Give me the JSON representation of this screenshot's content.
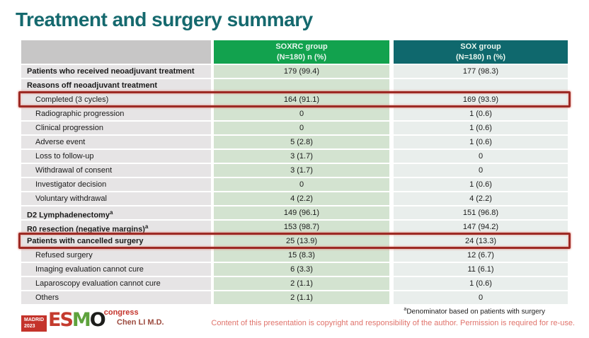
{
  "slide": {
    "title": "Treatment and surgery summary"
  },
  "table": {
    "columns": [
      {
        "name": "SOXRC group",
        "sub": "(N=180)  n (%)"
      },
      {
        "name": "SOX group",
        "sub": "(N=180)  n (%)"
      }
    ],
    "rows": [
      {
        "label": "Patients who received neoadjuvant treatment",
        "sup": "",
        "bold": true,
        "highlight": false,
        "soxrc": "179 (99.4)",
        "sox": "177 (98.3)"
      },
      {
        "label": "Reasons off neoadjuvant treatment",
        "sup": "",
        "bold": true,
        "highlight": false,
        "soxrc": "",
        "sox": ""
      },
      {
        "label": "Completed (3 cycles)",
        "sup": "",
        "bold": false,
        "highlight": true,
        "soxrc": "164 (91.1)",
        "sox": "169 (93.9)"
      },
      {
        "label": "Radiographic progression",
        "sup": "",
        "bold": false,
        "highlight": false,
        "soxrc": "0",
        "sox": "1 (0.6)"
      },
      {
        "label": "Clinical progression",
        "sup": "",
        "bold": false,
        "highlight": false,
        "soxrc": "0",
        "sox": "1 (0.6)"
      },
      {
        "label": "Adverse event",
        "sup": "",
        "bold": false,
        "highlight": false,
        "soxrc": "5 (2.8)",
        "sox": "1 (0.6)"
      },
      {
        "label": "Loss to follow-up",
        "sup": "",
        "bold": false,
        "highlight": false,
        "soxrc": "3 (1.7)",
        "sox": "0"
      },
      {
        "label": "Withdrawal of consent",
        "sup": "",
        "bold": false,
        "highlight": false,
        "soxrc": "3 (1.7)",
        "sox": "0"
      },
      {
        "label": "Investigator decision",
        "sup": "",
        "bold": false,
        "highlight": false,
        "soxrc": "0",
        "sox": "1 (0.6)"
      },
      {
        "label": "Voluntary withdrawal",
        "sup": "",
        "bold": false,
        "highlight": false,
        "soxrc": "4 (2.2)",
        "sox": "4 (2.2)"
      },
      {
        "label": "D2 Lymphadenectomy",
        "sup": "a",
        "bold": true,
        "highlight": false,
        "soxrc": "149 (96.1)",
        "sox": "151 (96.8)"
      },
      {
        "label": "R0 resection (negative margins)",
        "sup": "a",
        "bold": true,
        "highlight": false,
        "soxrc": "153 (98.7)",
        "sox": "147 (94.2)"
      },
      {
        "label": "Patients with cancelled surgery",
        "sup": "",
        "bold": true,
        "highlight": true,
        "soxrc": "25 (13.9)",
        "sox": "24 (13.3)"
      },
      {
        "label": "Refused surgery",
        "sup": "",
        "bold": false,
        "highlight": false,
        "soxrc": "15 (8.3)",
        "sox": "12 (6.7)"
      },
      {
        "label": "Imaging evaluation cannot cure",
        "sup": "",
        "bold": false,
        "highlight": false,
        "soxrc": "6 (3.3)",
        "sox": "11 (6.1)"
      },
      {
        "label": "Laparoscopy evaluation cannot cure",
        "sup": "",
        "bold": false,
        "highlight": false,
        "soxrc": "2 (1.1)",
        "sox": "1 (0.6)"
      },
      {
        "label": "Others",
        "sup": "",
        "bold": false,
        "highlight": false,
        "soxrc": "2 (1.1)",
        "sox": "0"
      }
    ]
  },
  "footer": {
    "logo": {
      "venue_line1": "MADRID",
      "venue_line2": "2023",
      "brand_letters": [
        "E",
        "S",
        "M",
        "O"
      ],
      "congress": "congress"
    },
    "author": "Chen LI M.D.",
    "footnote_sup": "a",
    "footnote": "Denominator based on patients with surgery",
    "copyright": "Content of this presentation is copyright and responsibility of the author. Permission is required for re-use."
  },
  "colors": {
    "title": "#15696e",
    "header_empty_bg": "#c7c6c6",
    "header_soxrc_bg": "#12a24e",
    "header_sox_bg": "#0f686d",
    "label_col_bg": "#e6e4e5",
    "soxrc_col_bg": "#d3e3d0",
    "sox_col_bg": "#e9eeec",
    "highlight_border": "#9d2a24",
    "esmo_letter_colors": [
      "#c43b2e",
      "#c43b2e",
      "#5ea23c",
      "#1d1d1b"
    ],
    "accent_red": "#c4332b",
    "copyright_text": "#e0736b",
    "author_text": "#9c4a3e"
  }
}
